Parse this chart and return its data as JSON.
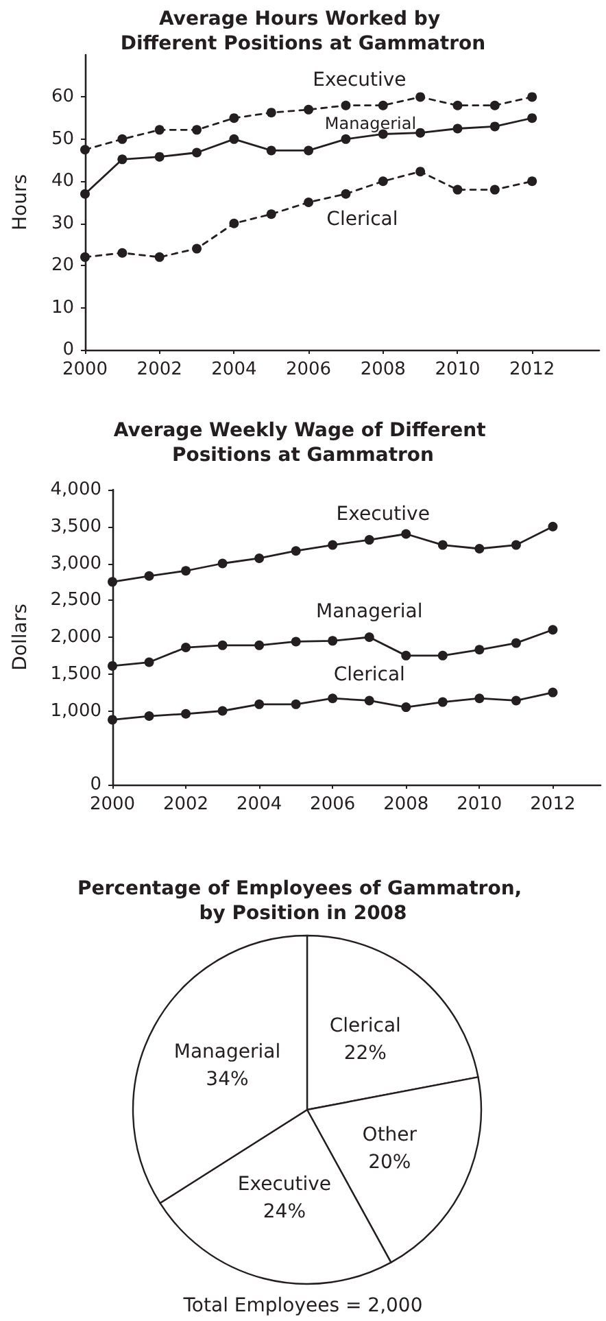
{
  "chart_data": [
    {
      "type": "line",
      "title": "Average Hours Worked by Different Positions at Gammatron",
      "ylabel": "Hours",
      "x": [
        2000,
        2001,
        2002,
        2003,
        2004,
        2005,
        2006,
        2007,
        2008,
        2009,
        2010,
        2011,
        2012
      ],
      "series": [
        {
          "name": "Executive",
          "color": "#231f20",
          "line_style": "dashed",
          "values": [
            47.5,
            50,
            52.2,
            52.2,
            55,
            56.3,
            57,
            58,
            58,
            60,
            58,
            58,
            60
          ]
        },
        {
          "name": "Managerial",
          "color": "#231f20",
          "line_style": "solid",
          "values": [
            37,
            45.2,
            45.8,
            46.8,
            50,
            47.3,
            47.3,
            50,
            51.2,
            51.5,
            52.5,
            53,
            55
          ]
        },
        {
          "name": "Clerical",
          "color": "#231f20",
          "line_style": "dashed",
          "values": [
            22,
            23,
            22,
            24,
            30,
            32.2,
            35,
            37,
            40,
            42.3,
            38,
            38,
            40
          ]
        }
      ],
      "xlim": [
        2000,
        2013.8
      ],
      "xticks": [
        2000,
        2002,
        2004,
        2006,
        2008,
        2010,
        2012
      ],
      "ylim": [
        0,
        70
      ],
      "yticks": [
        0,
        10,
        20,
        30,
        40,
        50,
        60
      ],
      "marker": "circle",
      "grid": false,
      "legend": false
    },
    {
      "type": "line",
      "title": "Average Weekly Wage of Different Positions at Gammatron",
      "ylabel": "Dollars",
      "x": [
        2000,
        2001,
        2002,
        2003,
        2004,
        2005,
        2006,
        2007,
        2008,
        2009,
        2010,
        2011,
        2012
      ],
      "series": [
        {
          "name": "Executive",
          "color": "#231f20",
          "values": [
            2750,
            2830,
            2900,
            3000,
            3070,
            3170,
            3250,
            3320,
            3400,
            3250,
            3200,
            3250,
            3500
          ]
        },
        {
          "name": "Managerial",
          "color": "#231f20",
          "values": [
            1610,
            1660,
            1860,
            1890,
            1890,
            1940,
            1950,
            2000,
            1750,
            1750,
            1830,
            1920,
            2100
          ]
        },
        {
          "name": "Clerical",
          "color": "#231f20",
          "values": [
            880,
            930,
            960,
            1000,
            1090,
            1090,
            1170,
            1140,
            1050,
            1120,
            1170,
            1140,
            1250
          ]
        }
      ],
      "xlim": [
        2000,
        2013.3
      ],
      "xticks": [
        2000,
        2002,
        2004,
        2006,
        2008,
        2010,
        2012
      ],
      "ylim": [
        0,
        4000
      ],
      "yticks": [
        0,
        {
          "value": 1000,
          "label": "1,000"
        },
        {
          "value": 1500,
          "label": "1,500"
        },
        {
          "value": 2000,
          "label": "2,000"
        },
        {
          "value": 2500,
          "label": "2,500"
        },
        {
          "value": 3000,
          "label": "3,000"
        },
        {
          "value": 3500,
          "label": "3,500"
        },
        {
          "value": 4000,
          "label": "4,000"
        }
      ],
      "line_style": "solid",
      "marker": "circle",
      "grid": false,
      "legend": false
    },
    {
      "type": "pie",
      "title": "Percentage of Employees of Gammatron, by Position in 2008",
      "categories": [
        "Clerical",
        "Other",
        "Executive",
        "Managerial"
      ],
      "values": [
        22,
        20,
        24,
        34
      ],
      "value_labels": [
        "22%",
        "20%",
        "24%",
        "34%"
      ],
      "colors": [
        "#ffffff",
        "#ffffff",
        "#ffffff",
        "#ffffff"
      ],
      "annotations": [
        "Total Employees = 2,000"
      ],
      "legend": false
    }
  ]
}
